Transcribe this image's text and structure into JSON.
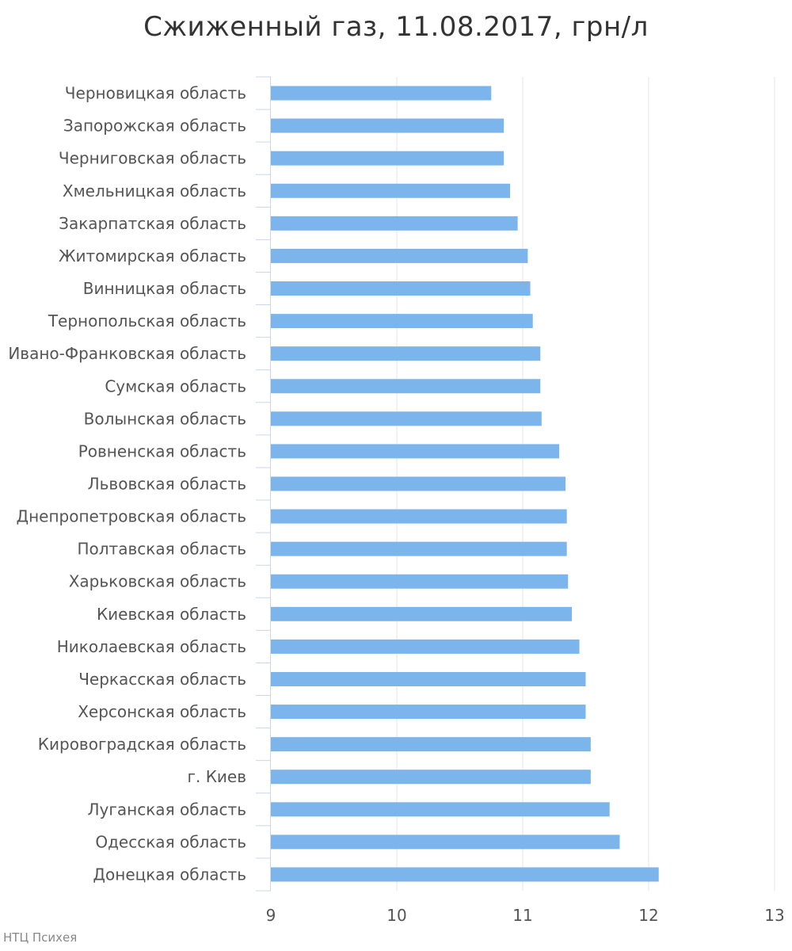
{
  "chart_data": {
    "type": "bar",
    "orientation": "horizontal",
    "title": "Сжиженный газ, 11.08.2017, грн/л",
    "xlabel": "",
    "ylabel": "",
    "categories": [
      "Черновицкая область",
      "Запорожская область",
      "Черниговская область",
      "Хмельницкая область",
      "Закарпатская область",
      "Житомирская область",
      "Винницкая область",
      "Тернопольская область",
      "Ивано-Франковская область",
      "Сумская область",
      "Волынская область",
      "Ровненская область",
      "Львовская область",
      "Днепропетровская область",
      "Полтавская область",
      "Харьковская область",
      "Киевская область",
      "Николаевская область",
      "Черкасская область",
      "Херсонская область",
      "Кировоградская область",
      "г. Киев",
      "Луганская область",
      "Одесская область",
      "Донецкая область"
    ],
    "values": [
      10.75,
      10.85,
      10.85,
      10.9,
      10.96,
      11.04,
      11.06,
      11.08,
      11.14,
      11.14,
      11.15,
      11.29,
      11.34,
      11.35,
      11.35,
      11.36,
      11.39,
      11.45,
      11.5,
      11.5,
      11.54,
      11.54,
      11.69,
      11.77,
      12.08
    ],
    "xlim": [
      9,
      13
    ],
    "xticks": [
      "9",
      "10",
      "11",
      "12",
      "13"
    ],
    "grid": true,
    "bar_color": "#7cb5ec",
    "grid_color": "#e6e6e6",
    "axis_color": "#ccd6eb"
  },
  "source": "НТЦ Психея"
}
